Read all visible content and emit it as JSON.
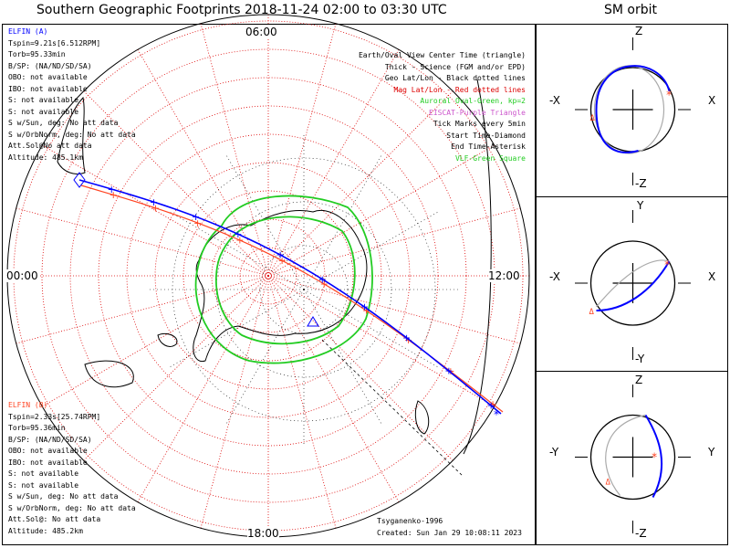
{
  "title": "Southern Geographic Footprints 2018-11-24 02:00 to 03:30 UTC",
  "orbit_title": "SM orbit",
  "hour_labels": {
    "top": "06:00",
    "left": "00:00",
    "right": "12:00",
    "bottom": "18:00"
  },
  "elfin_a": {
    "header": "ELFIN (A)",
    "lines": [
      "Tspin=9.21s[6.512RPM]",
      "Torb=95.33min",
      "B/SP: (NA/ND/SD/SA)",
      "OBO: not available",
      "IBO: not available",
      "S: not available",
      "S: not available",
      "S w/Sun, deg: No att data",
      "S w/OrbNorm, deg: No att data",
      "Att.Sol@No att data",
      "Altitude: 485.1km"
    ]
  },
  "elfin_b": {
    "header": "ELFIN (B)",
    "lines": [
      "Tspin=2.33s[25.74RPM]",
      "Torb=95.36min",
      "B/SP: (NA/ND/SD/SA)",
      "OBO: not available",
      "IBO: not available",
      "S: not available",
      "S: not available",
      "S w/Sun, deg: No att data",
      "S w/OrbNorm, deg: No att data",
      "Att.Sol@: No att data",
      "Altitude: 485.2km"
    ]
  },
  "legend": [
    {
      "text": "Earth/Oval View Center Time (triangle)",
      "color": "#000000"
    },
    {
      "text": "Thick - Science (FGM and/or EPD)",
      "color": "#000000"
    },
    {
      "text": "Geo Lat/Lon - Black dotted lines",
      "color": "#000000"
    },
    {
      "text": "Mag Lat/Lon - Red dotted lines",
      "color": "#dd0000"
    },
    {
      "text": "Auroral Oval-Green, kp=2",
      "color": "#22cc22"
    },
    {
      "text": "EISCAT-Purple Triangle",
      "color": "#cc55cc"
    },
    {
      "text": "Tick Marks every 5min",
      "color": "#000000"
    },
    {
      "text": "Start Time-Diamond",
      "color": "#000000"
    },
    {
      "text": "End Time-Asterisk",
      "color": "#000000"
    },
    {
      "text": "VLF-Green Square",
      "color": "#22cc22"
    }
  ],
  "footer": {
    "model": "Tsyganenko-1996",
    "created": "Created: Sun Jan 29 10:08:11 2023"
  },
  "orbit_panels": [
    {
      "top": "Z",
      "bottom": "-Z",
      "left": "-X",
      "right": "X"
    },
    {
      "top": "Y",
      "bottom": "-Y",
      "left": "-X",
      "right": "X"
    },
    {
      "top": "Z",
      "bottom": "-Z",
      "left": "-Y",
      "right": "Y"
    }
  ],
  "colors": {
    "elfin_a": "#0000ff",
    "elfin_b": "#ff4422",
    "oval": "#22cc22",
    "grid_mag": "#dd0000",
    "grid_geo": "#000000"
  },
  "chart_data": {
    "type": "polar-map",
    "projection": "southern polar stereographic, magnetic local time",
    "series": [
      {
        "name": "ELFIN (A)",
        "color": "#0000ff"
      },
      {
        "name": "ELFIN (B)",
        "color": "#ff4422"
      }
    ],
    "auroral_oval_kp": 2,
    "tick_interval_min": 5,
    "time_range": [
      "2018-11-24 02:00",
      "2018-11-24 03:30"
    ]
  }
}
